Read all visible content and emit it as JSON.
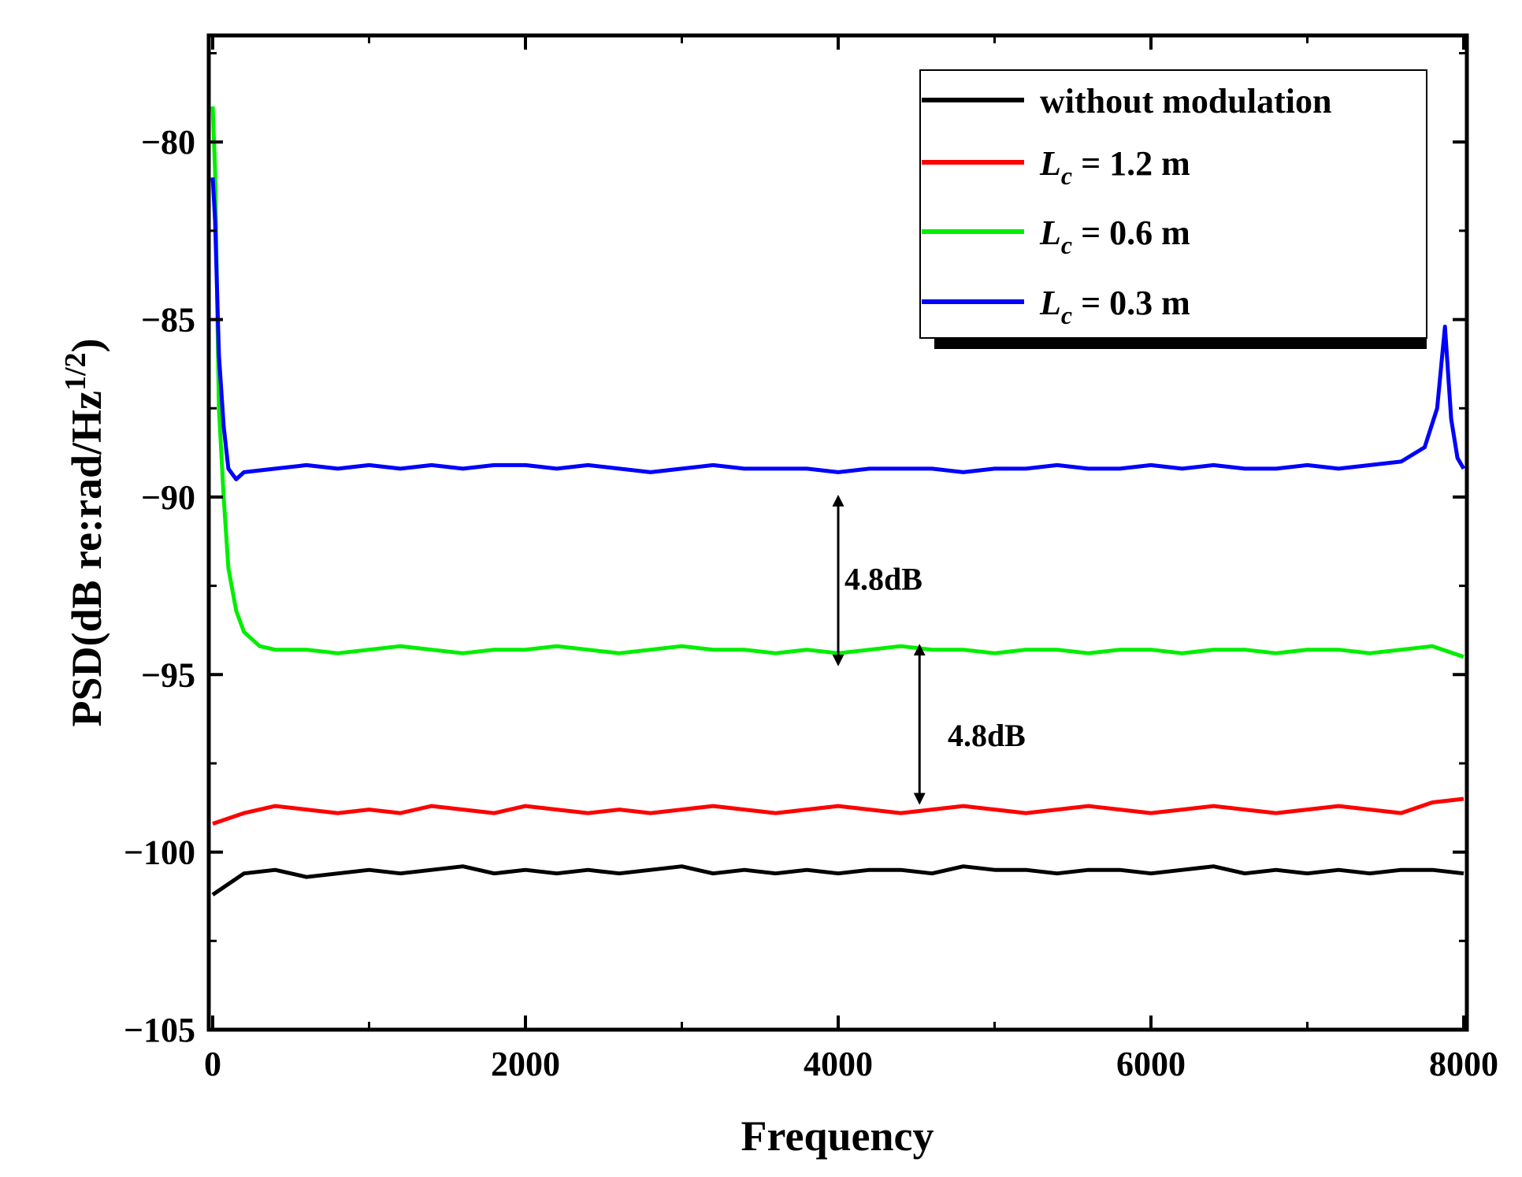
{
  "chart_data": {
    "type": "line",
    "title": "",
    "xlabel": "Frequency",
    "ylabel_main": "PSD(dB re:rad/Hz",
    "ylabel_sup": "1/2",
    "ylabel_close": ")",
    "xlim": [
      0,
      8000
    ],
    "ylim": [
      -105,
      -77
    ],
    "grid": false,
    "legend_placement": "top-right",
    "x_ticks": [
      0,
      2000,
      4000,
      6000,
      8000
    ],
    "x_tick_labels": [
      "0",
      "2000",
      "4000",
      "6000",
      "8000"
    ],
    "y_ticks": [
      -80,
      -85,
      -90,
      -95,
      -100,
      -105
    ],
    "y_tick_labels": [
      "−80",
      "−85",
      "−90",
      "−95",
      "−100",
      "−105"
    ],
    "series": [
      {
        "name": "without modulation",
        "legend_main": "without modulation",
        "legend_sub": "",
        "legend_value": "",
        "color": "#000000",
        "points": [
          [
            0,
            -101.2
          ],
          [
            200,
            -100.6
          ],
          [
            400,
            -100.5
          ],
          [
            600,
            -100.7
          ],
          [
            800,
            -100.6
          ],
          [
            1000,
            -100.5
          ],
          [
            1200,
            -100.6
          ],
          [
            1400,
            -100.5
          ],
          [
            1600,
            -100.4
          ],
          [
            1800,
            -100.6
          ],
          [
            2000,
            -100.5
          ],
          [
            2200,
            -100.6
          ],
          [
            2400,
            -100.5
          ],
          [
            2600,
            -100.6
          ],
          [
            2800,
            -100.5
          ],
          [
            3000,
            -100.4
          ],
          [
            3200,
            -100.6
          ],
          [
            3400,
            -100.5
          ],
          [
            3600,
            -100.6
          ],
          [
            3800,
            -100.5
          ],
          [
            4000,
            -100.6
          ],
          [
            4200,
            -100.5
          ],
          [
            4400,
            -100.5
          ],
          [
            4600,
            -100.6
          ],
          [
            4800,
            -100.4
          ],
          [
            5000,
            -100.5
          ],
          [
            5200,
            -100.5
          ],
          [
            5400,
            -100.6
          ],
          [
            5600,
            -100.5
          ],
          [
            5800,
            -100.5
          ],
          [
            6000,
            -100.6
          ],
          [
            6200,
            -100.5
          ],
          [
            6400,
            -100.4
          ],
          [
            6600,
            -100.6
          ],
          [
            6800,
            -100.5
          ],
          [
            7000,
            -100.6
          ],
          [
            7200,
            -100.5
          ],
          [
            7400,
            -100.6
          ],
          [
            7600,
            -100.5
          ],
          [
            7800,
            -100.5
          ],
          [
            8000,
            -100.6
          ]
        ]
      },
      {
        "name": "Lc = 1.2 m",
        "legend_main": "L",
        "legend_sub": "c",
        "legend_value": " = 1.2 m",
        "color": "#ff0000",
        "points": [
          [
            0,
            -99.2
          ],
          [
            200,
            -98.9
          ],
          [
            400,
            -98.7
          ],
          [
            600,
            -98.8
          ],
          [
            800,
            -98.9
          ],
          [
            1000,
            -98.8
          ],
          [
            1200,
            -98.9
          ],
          [
            1400,
            -98.7
          ],
          [
            1600,
            -98.8
          ],
          [
            1800,
            -98.9
          ],
          [
            2000,
            -98.7
          ],
          [
            2200,
            -98.8
          ],
          [
            2400,
            -98.9
          ],
          [
            2600,
            -98.8
          ],
          [
            2800,
            -98.9
          ],
          [
            3000,
            -98.8
          ],
          [
            3200,
            -98.7
          ],
          [
            3400,
            -98.8
          ],
          [
            3600,
            -98.9
          ],
          [
            3800,
            -98.8
          ],
          [
            4000,
            -98.7
          ],
          [
            4200,
            -98.8
          ],
          [
            4400,
            -98.9
          ],
          [
            4600,
            -98.8
          ],
          [
            4800,
            -98.7
          ],
          [
            5000,
            -98.8
          ],
          [
            5200,
            -98.9
          ],
          [
            5400,
            -98.8
          ],
          [
            5600,
            -98.7
          ],
          [
            5800,
            -98.8
          ],
          [
            6000,
            -98.9
          ],
          [
            6200,
            -98.8
          ],
          [
            6400,
            -98.7
          ],
          [
            6600,
            -98.8
          ],
          [
            6800,
            -98.9
          ],
          [
            7000,
            -98.8
          ],
          [
            7200,
            -98.7
          ],
          [
            7400,
            -98.8
          ],
          [
            7600,
            -98.9
          ],
          [
            7800,
            -98.6
          ],
          [
            8000,
            -98.5
          ]
        ]
      },
      {
        "name": "Lc = 0.6 m",
        "legend_main": "L",
        "legend_sub": "c",
        "legend_value": " = 0.6 m",
        "color": "#00ee00",
        "points": [
          [
            0,
            -79.0
          ],
          [
            15,
            -80.8
          ],
          [
            40,
            -87.5
          ],
          [
            70,
            -90.0
          ],
          [
            100,
            -92.0
          ],
          [
            150,
            -93.2
          ],
          [
            200,
            -93.8
          ],
          [
            300,
            -94.2
          ],
          [
            400,
            -94.3
          ],
          [
            600,
            -94.3
          ],
          [
            800,
            -94.4
          ],
          [
            1000,
            -94.3
          ],
          [
            1200,
            -94.2
          ],
          [
            1400,
            -94.3
          ],
          [
            1600,
            -94.4
          ],
          [
            1800,
            -94.3
          ],
          [
            2000,
            -94.3
          ],
          [
            2200,
            -94.2
          ],
          [
            2400,
            -94.3
          ],
          [
            2600,
            -94.4
          ],
          [
            2800,
            -94.3
          ],
          [
            3000,
            -94.2
          ],
          [
            3200,
            -94.3
          ],
          [
            3400,
            -94.3
          ],
          [
            3600,
            -94.4
          ],
          [
            3800,
            -94.3
          ],
          [
            4000,
            -94.4
          ],
          [
            4200,
            -94.3
          ],
          [
            4400,
            -94.2
          ],
          [
            4600,
            -94.3
          ],
          [
            4800,
            -94.3
          ],
          [
            5000,
            -94.4
          ],
          [
            5200,
            -94.3
          ],
          [
            5400,
            -94.3
          ],
          [
            5600,
            -94.4
          ],
          [
            5800,
            -94.3
          ],
          [
            6000,
            -94.3
          ],
          [
            6200,
            -94.4
          ],
          [
            6400,
            -94.3
          ],
          [
            6600,
            -94.3
          ],
          [
            6800,
            -94.4
          ],
          [
            7000,
            -94.3
          ],
          [
            7200,
            -94.3
          ],
          [
            7400,
            -94.4
          ],
          [
            7600,
            -94.3
          ],
          [
            7800,
            -94.2
          ],
          [
            8000,
            -94.5
          ]
        ]
      },
      {
        "name": "Lc = 0.3 m",
        "legend_main": "L",
        "legend_sub": "c",
        "legend_value": " = 0.3 m",
        "color": "#0000ff",
        "points": [
          [
            0,
            -81.0
          ],
          [
            15,
            -82.2
          ],
          [
            40,
            -86.0
          ],
          [
            70,
            -88.0
          ],
          [
            100,
            -89.2
          ],
          [
            150,
            -89.5
          ],
          [
            200,
            -89.3
          ],
          [
            400,
            -89.2
          ],
          [
            600,
            -89.1
          ],
          [
            800,
            -89.2
          ],
          [
            1000,
            -89.1
          ],
          [
            1200,
            -89.2
          ],
          [
            1400,
            -89.1
          ],
          [
            1600,
            -89.2
          ],
          [
            1800,
            -89.1
          ],
          [
            2000,
            -89.1
          ],
          [
            2200,
            -89.2
          ],
          [
            2400,
            -89.1
          ],
          [
            2600,
            -89.2
          ],
          [
            2800,
            -89.3
          ],
          [
            3000,
            -89.2
          ],
          [
            3200,
            -89.1
          ],
          [
            3400,
            -89.2
          ],
          [
            3600,
            -89.2
          ],
          [
            3800,
            -89.2
          ],
          [
            4000,
            -89.3
          ],
          [
            4200,
            -89.2
          ],
          [
            4400,
            -89.2
          ],
          [
            4600,
            -89.2
          ],
          [
            4800,
            -89.3
          ],
          [
            5000,
            -89.2
          ],
          [
            5200,
            -89.2
          ],
          [
            5400,
            -89.1
          ],
          [
            5600,
            -89.2
          ],
          [
            5800,
            -89.2
          ],
          [
            6000,
            -89.1
          ],
          [
            6200,
            -89.2
          ],
          [
            6400,
            -89.1
          ],
          [
            6600,
            -89.2
          ],
          [
            6800,
            -89.2
          ],
          [
            7000,
            -89.1
          ],
          [
            7200,
            -89.2
          ],
          [
            7400,
            -89.1
          ],
          [
            7600,
            -89.0
          ],
          [
            7750,
            -88.6
          ],
          [
            7830,
            -87.5
          ],
          [
            7880,
            -85.2
          ],
          [
            7920,
            -87.8
          ],
          [
            7960,
            -88.9
          ],
          [
            8000,
            -89.2
          ]
        ]
      }
    ],
    "annotations": [
      {
        "text": "4.8dB",
        "x": 4000,
        "y_from": -90.0,
        "y_to": -94.7,
        "label_x": 4000,
        "label_y": -92.3
      },
      {
        "text": "4.8dB",
        "x": 4520,
        "y_from": -94.2,
        "y_to": -98.6,
        "label_x": 4700,
        "label_y": -96.7
      }
    ]
  }
}
